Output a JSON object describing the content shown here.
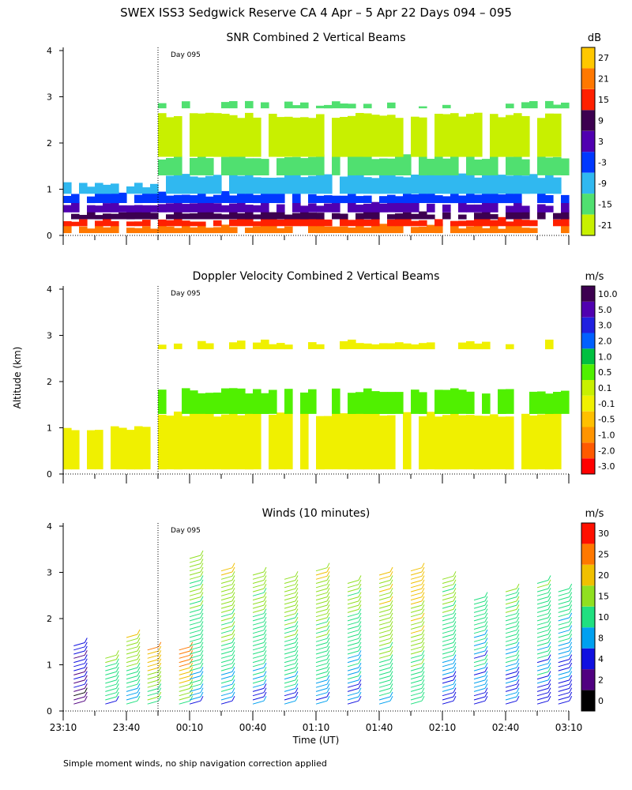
{
  "title": "SWEX ISS3 Sedgwick Reserve CA   4 Apr –  5 Apr 22 Days 094 – 095",
  "ylabel": "Altitude (km)",
  "xlabel": "Time (UT)",
  "footnote": "Simple moment winds, no ship navigation correction applied",
  "day_marker": "Day 095",
  "chart_data": [
    {
      "type": "heatmap",
      "title": "SNR Combined 2 Vertical Beams",
      "colorbar": {
        "unit": "dB",
        "labels": [
          "-21",
          "-15",
          "-9",
          "-3",
          "3",
          "9",
          "15",
          "21",
          "27"
        ],
        "colors": [
          "#c8f000",
          "#50e070",
          "#30b8f0",
          "#0038ff",
          "#5000b0",
          "#3c0050",
          "#ff2000",
          "#ff7800",
          "#ffc800"
        ]
      },
      "ylim": [
        0,
        4
      ],
      "yticks": [
        "0",
        "1",
        "2",
        "3",
        "4"
      ],
      "bands": [
        {
          "alt": [
            0.05,
            0.2
          ],
          "value": 21,
          "color": "#ff7800"
        },
        {
          "alt": [
            0.2,
            0.35
          ],
          "value": 15,
          "color": "#ff2000"
        },
        {
          "alt": [
            0.35,
            0.5
          ],
          "value": 9,
          "color": "#3c0050"
        },
        {
          "alt": [
            0.5,
            0.7
          ],
          "value": 3,
          "color": "#5000b0"
        },
        {
          "alt": [
            0.7,
            0.9
          ],
          "value": -3,
          "color": "#0038ff"
        },
        {
          "alt": [
            0.9,
            1.3
          ],
          "value": -9,
          "color": "#30b8f0"
        },
        {
          "alt": [
            1.3,
            1.7
          ],
          "value": -15,
          "color": "#50e070"
        },
        {
          "alt": [
            1.7,
            2.6
          ],
          "value": -21,
          "color": "#c8f000"
        },
        {
          "alt": [
            2.75,
            2.85
          ],
          "value": -15,
          "color": "#50e070"
        }
      ]
    },
    {
      "type": "heatmap",
      "title": "Doppler Velocity Combined 2 Vertical Beams",
      "colorbar": {
        "unit": "m/s",
        "labels": [
          "-3.0",
          "-2.0",
          "-1.0",
          "-0.5",
          "-0.1",
          "0.1",
          "0.5",
          "1.0",
          "2.0",
          "3.0",
          "5.0",
          "10.0"
        ],
        "colors": [
          "#ff0000",
          "#ff5a00",
          "#ff9400",
          "#ffc000",
          "#f0f000",
          "#c8f000",
          "#50f000",
          "#00c040",
          "#0060ff",
          "#2020e0",
          "#5000b0",
          "#3c0050"
        ]
      },
      "ylim": [
        0,
        4
      ],
      "yticks": [
        "0",
        "1",
        "2",
        "3",
        "4"
      ],
      "bands": [
        {
          "alt": [
            0.1,
            1.3
          ],
          "value": -0.1,
          "color": "#f0f000"
        },
        {
          "alt": [
            1.3,
            1.8
          ],
          "value": 0.5,
          "color": "#50f000"
        },
        {
          "alt": [
            2.7,
            2.85
          ],
          "value": -0.1,
          "color": "#f0f000"
        }
      ]
    },
    {
      "type": "scatter",
      "title": "Winds (10 minutes)",
      "colorbar": {
        "unit": "m/s",
        "labels": [
          "0",
          "2",
          "4",
          "8",
          "10",
          "15",
          "20",
          "25",
          "30"
        ],
        "colors": [
          "#000000",
          "#500080",
          "#1010e0",
          "#00a0f0",
          "#20e080",
          "#90e020",
          "#f0c000",
          "#ff7800",
          "#ff1000"
        ]
      },
      "ylim": [
        0,
        4
      ],
      "yticks": [
        "0",
        "1",
        "2",
        "3",
        "4"
      ],
      "xticks": [
        "23:10",
        "23:40",
        "00:10",
        "00:40",
        "01:10",
        "01:40",
        "02:10",
        "02:40",
        "03:10"
      ],
      "barb_columns": [
        {
          "time": "23:15",
          "top_km": 1.5,
          "speed": 6
        },
        {
          "time": "23:30",
          "top_km": 1.2,
          "speed": 18
        },
        {
          "time": "23:40",
          "top_km": 1.6,
          "speed": 20
        },
        {
          "time": "23:50",
          "top_km": 1.4,
          "speed": 28
        },
        {
          "time": "00:05",
          "top_km": 1.35,
          "speed": 30
        },
        {
          "time": "00:10",
          "top_km": 3.3,
          "speed": 18
        },
        {
          "time": "00:25",
          "top_km": 3.1,
          "speed": 20
        },
        {
          "time": "00:40",
          "top_km": 3.0,
          "speed": 18
        },
        {
          "time": "00:55",
          "top_km": 2.9,
          "speed": 19
        },
        {
          "time": "01:10",
          "top_km": 3.1,
          "speed": 20
        },
        {
          "time": "01:25",
          "top_km": 2.8,
          "speed": 17
        },
        {
          "time": "01:40",
          "top_km": 3.0,
          "speed": 22
        },
        {
          "time": "01:55",
          "top_km": 3.1,
          "speed": 25
        },
        {
          "time": "02:10",
          "top_km": 2.9,
          "speed": 17
        },
        {
          "time": "02:25",
          "top_km": 2.4,
          "speed": 14
        },
        {
          "time": "02:40",
          "top_km": 2.6,
          "speed": 16
        },
        {
          "time": "02:55",
          "top_km": 2.8,
          "speed": 15
        },
        {
          "time": "03:05",
          "top_km": 2.6,
          "speed": 14
        }
      ]
    }
  ]
}
